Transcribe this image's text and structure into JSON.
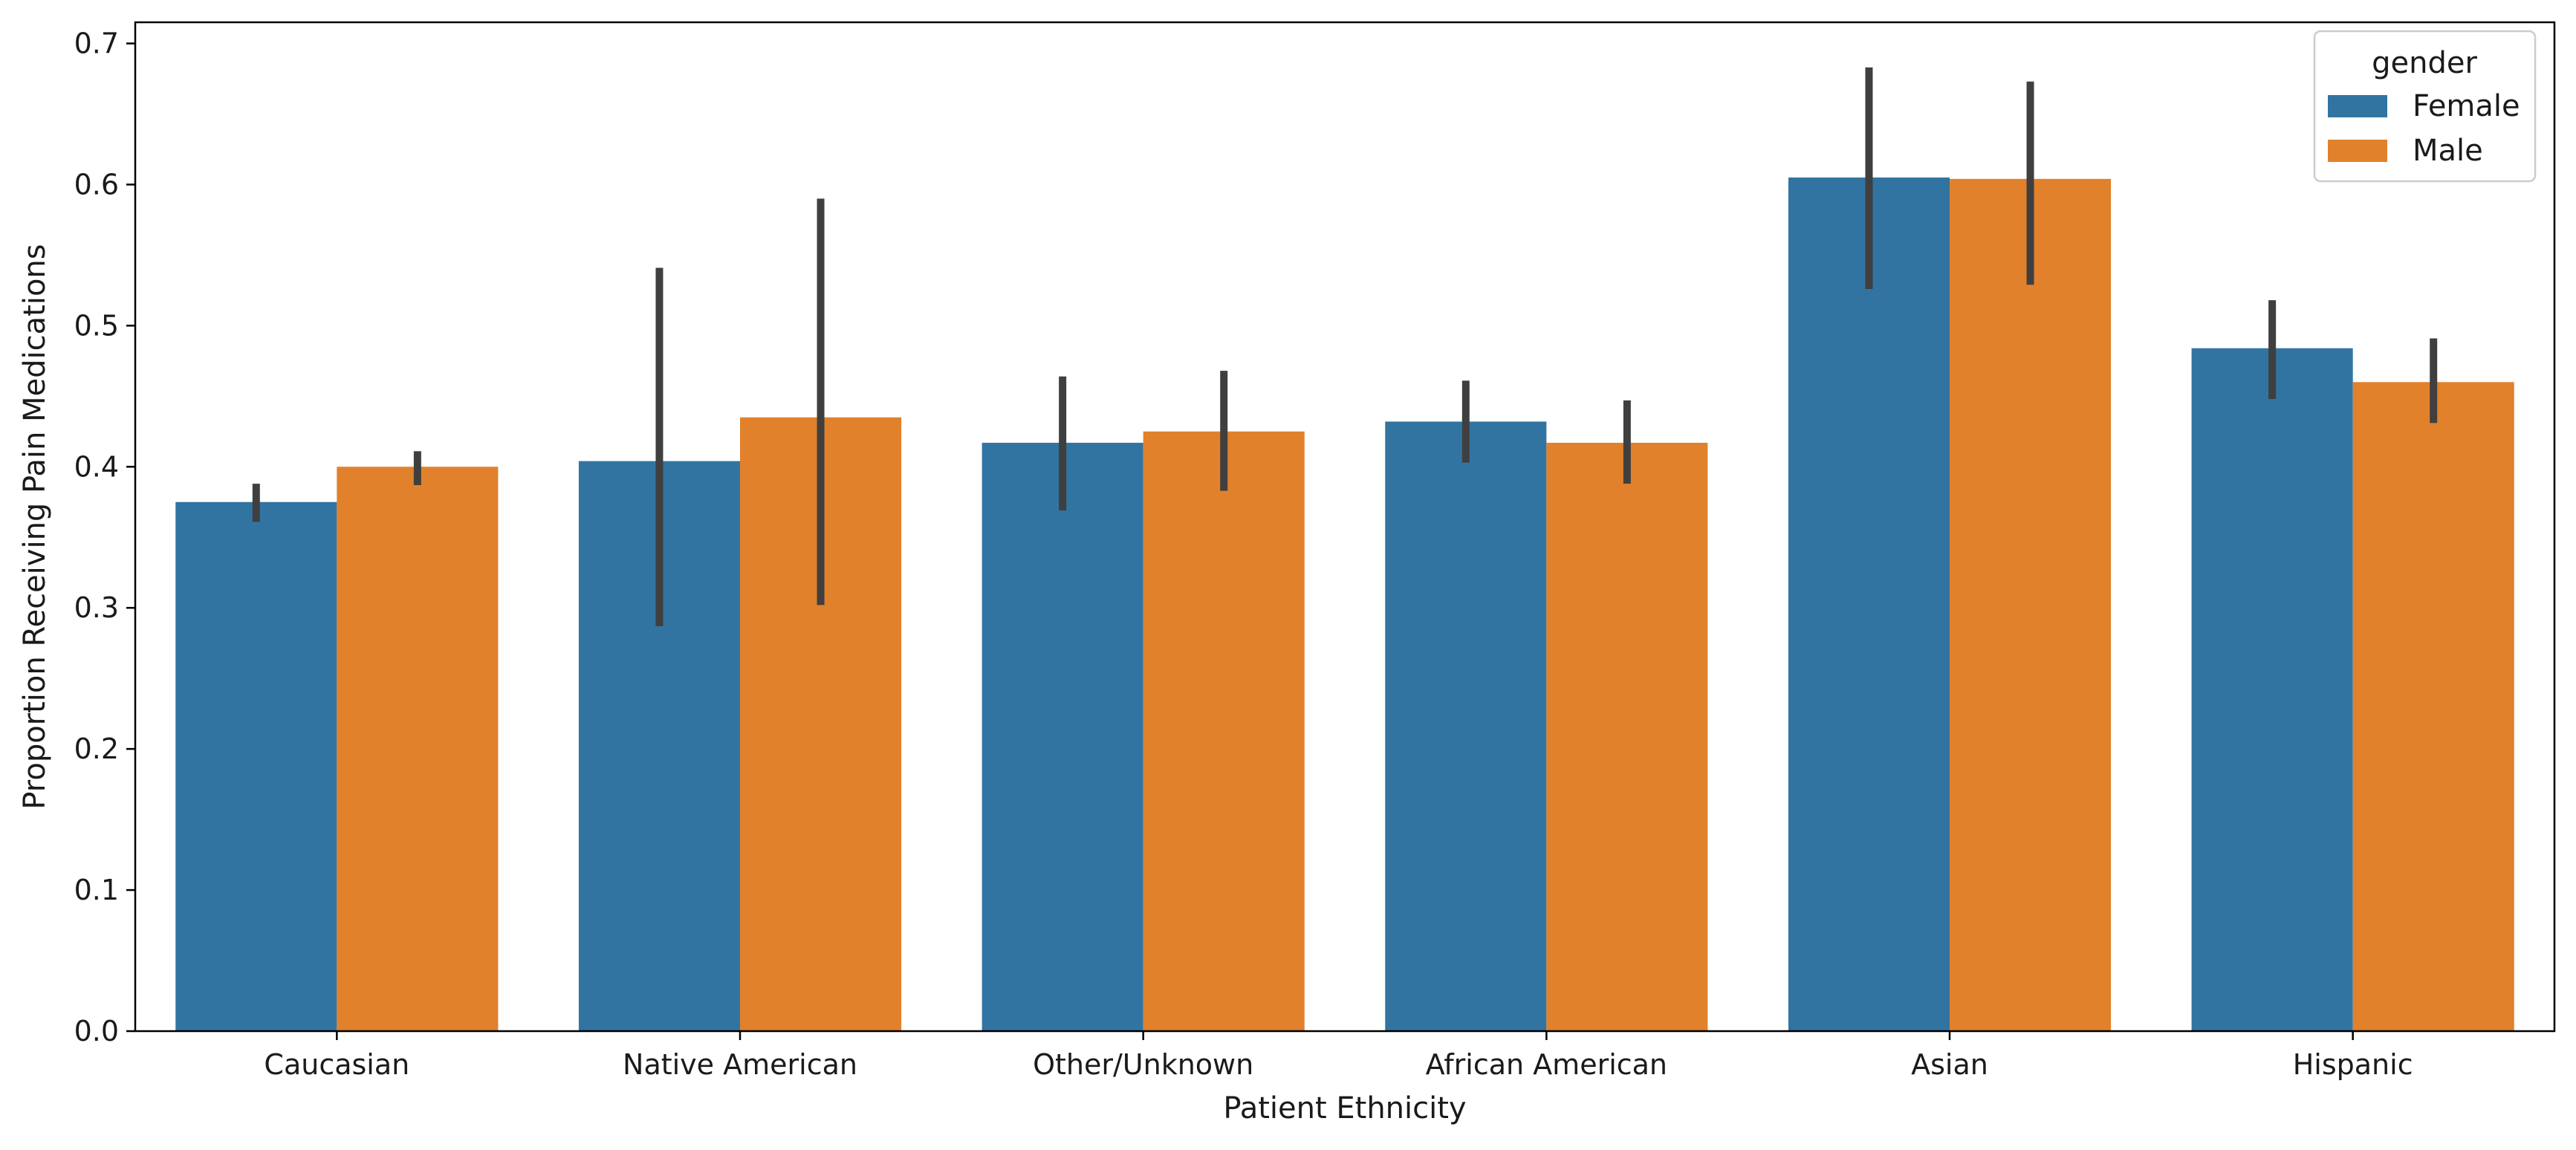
{
  "chart_data": {
    "type": "bar",
    "xlabel": "Patient Ethnicity",
    "ylabel": "Proportion Receiving Pain Medications",
    "ylim": [
      0,
      0.715
    ],
    "yticks": [
      "0.0",
      "0.1",
      "0.2",
      "0.3",
      "0.4",
      "0.5",
      "0.6",
      "0.7"
    ],
    "categories": [
      "Caucasian",
      "Native American",
      "Other/Unknown",
      "African American",
      "Asian",
      "Hispanic"
    ],
    "legend": {
      "title": "gender",
      "placement": "top-right"
    },
    "grid": false,
    "series": [
      {
        "name": "Female",
        "color": "#3274a1",
        "values": [
          0.375,
          0.404,
          0.417,
          0.432,
          0.605,
          0.484
        ],
        "ci_low": [
          0.361,
          0.287,
          0.369,
          0.403,
          0.526,
          0.448
        ],
        "ci_high": [
          0.388,
          0.541,
          0.464,
          0.461,
          0.683,
          0.518
        ]
      },
      {
        "name": "Male",
        "color": "#e1812c",
        "values": [
          0.4,
          0.435,
          0.425,
          0.417,
          0.604,
          0.46
        ],
        "ci_low": [
          0.387,
          0.302,
          0.383,
          0.388,
          0.529,
          0.431
        ],
        "ci_high": [
          0.411,
          0.59,
          0.468,
          0.447,
          0.673,
          0.491
        ]
      }
    ],
    "error_bar_color": "#3f3f3f"
  }
}
